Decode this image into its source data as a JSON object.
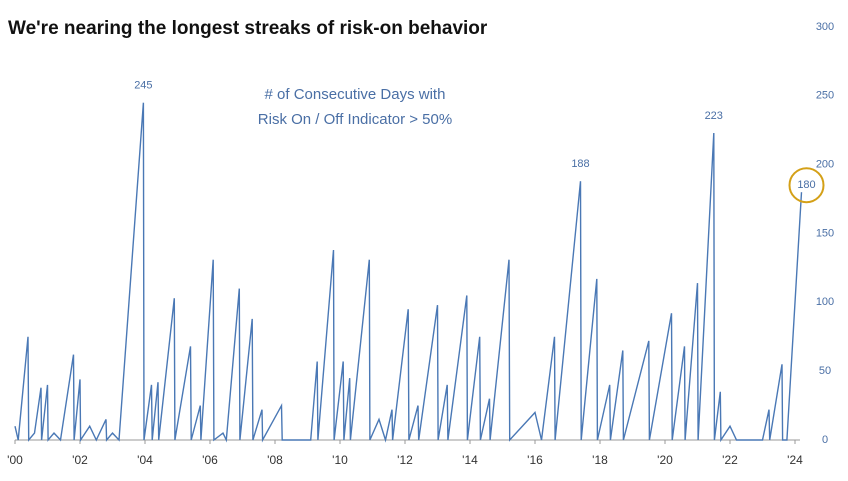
{
  "chart_data": {
    "type": "line",
    "title": "We're nearing the longest streaks of risk-on behavior",
    "annotation": [
      "# of Consecutive Days with",
      "Risk On / Off Indicator > 50%"
    ],
    "series": [
      {
        "color": "#4a78b5",
        "x": [
          2000.0,
          2000.1,
          2000.4,
          2000.42,
          2000.6,
          2000.8,
          2000.82,
          2001.0,
          2001.02,
          2001.2,
          2001.4,
          2001.8,
          2001.82,
          2002.0,
          2002.02,
          2002.3,
          2002.5,
          2002.8,
          2002.82,
          2003.0,
          2003.2,
          2003.95,
          2003.97,
          2004.2,
          2004.22,
          2004.4,
          2004.42,
          2004.9,
          2004.92,
          2005.4,
          2005.42,
          2005.7,
          2005.72,
          2006.1,
          2006.12,
          2006.4,
          2006.5,
          2006.9,
          2006.92,
          2007.3,
          2007.32,
          2007.6,
          2007.62,
          2008.2,
          2008.22,
          2009.1,
          2009.3,
          2009.32,
          2009.8,
          2009.82,
          2010.1,
          2010.12,
          2010.3,
          2010.32,
          2010.9,
          2010.92,
          2011.2,
          2011.4,
          2011.6,
          2011.62,
          2012.1,
          2012.12,
          2012.4,
          2012.42,
          2013.0,
          2013.02,
          2013.3,
          2013.32,
          2013.9,
          2013.92,
          2014.3,
          2014.32,
          2014.6,
          2014.62,
          2015.2,
          2015.22,
          2016.0,
          2016.2,
          2016.6,
          2016.62,
          2017.4,
          2017.42,
          2017.9,
          2017.92,
          2018.3,
          2018.32,
          2018.7,
          2018.72,
          2019.5,
          2019.52,
          2020.2,
          2020.22,
          2020.6,
          2020.62,
          2021.0,
          2021.02,
          2021.5,
          2021.52,
          2021.7,
          2021.72,
          2022.0,
          2022.2,
          2023.0,
          2023.2,
          2023.22,
          2023.6,
          2023.62,
          2023.75,
          2024.2
        ],
        "values": [
          10,
          0,
          75,
          0,
          5,
          38,
          0,
          40,
          0,
          5,
          0,
          62,
          0,
          44,
          0,
          10,
          0,
          15,
          0,
          5,
          0,
          245,
          0,
          40,
          0,
          42,
          0,
          103,
          0,
          68,
          0,
          25,
          0,
          131,
          0,
          5,
          0,
          110,
          0,
          88,
          0,
          22,
          0,
          25,
          0,
          0,
          57,
          0,
          138,
          0,
          57,
          0,
          45,
          0,
          131,
          0,
          15,
          0,
          22,
          0,
          95,
          0,
          25,
          0,
          98,
          0,
          40,
          0,
          105,
          0,
          75,
          0,
          30,
          0,
          131,
          0,
          20,
          0,
          75,
          0,
          188,
          0,
          117,
          0,
          40,
          0,
          65,
          0,
          72,
          0,
          92,
          0,
          68,
          0,
          114,
          0,
          223,
          0,
          35,
          0,
          10,
          0,
          0,
          22,
          0,
          55,
          0,
          0,
          180
        ],
        "value_labels": [
          null,
          null,
          null,
          null,
          null,
          null,
          null,
          null,
          null,
          null,
          null,
          null,
          null,
          null,
          null,
          null,
          null,
          null,
          null,
          null,
          null,
          "245",
          null,
          null,
          null,
          null,
          null,
          null,
          null,
          null,
          null,
          null,
          null,
          null,
          null,
          null,
          null,
          null,
          null,
          null,
          null,
          null,
          null,
          null,
          null,
          null,
          null,
          null,
          null,
          null,
          null,
          null,
          null,
          null,
          null,
          null,
          null,
          null,
          null,
          null,
          null,
          null,
          null,
          null,
          null,
          null,
          null,
          null,
          null,
          null,
          null,
          null,
          null,
          null,
          null,
          null,
          null,
          null,
          null,
          null,
          "188",
          null,
          null,
          null,
          null,
          null,
          null,
          null,
          null,
          null,
          null,
          null,
          null,
          null,
          null,
          null,
          "223",
          null,
          null,
          null,
          null,
          null,
          null,
          null,
          null,
          null,
          null,
          null,
          "180"
        ]
      }
    ],
    "xlim": [
      2000,
      2025
    ],
    "xticks": [
      {
        "value": 2000,
        "label": "'00"
      },
      {
        "value": 2002,
        "label": "'02"
      },
      {
        "value": 2004,
        "label": "'04"
      },
      {
        "value": 2006,
        "label": "'06"
      },
      {
        "value": 2008,
        "label": "'08"
      },
      {
        "value": 2010,
        "label": "'10"
      },
      {
        "value": 2012,
        "label": "'12"
      },
      {
        "value": 2014,
        "label": "'14"
      },
      {
        "value": 2016,
        "label": "'16"
      },
      {
        "value": 2018,
        "label": "'18"
      },
      {
        "value": 2020,
        "label": "'20"
      },
      {
        "value": 2022,
        "label": "'22"
      },
      {
        "value": 2024,
        "label": "'24"
      }
    ],
    "ylim": [
      0,
      300
    ],
    "yticks": [
      0,
      50,
      100,
      150,
      200,
      250,
      300
    ],
    "y_axis_side": "right",
    "highlight_color": "#d4a017"
  }
}
